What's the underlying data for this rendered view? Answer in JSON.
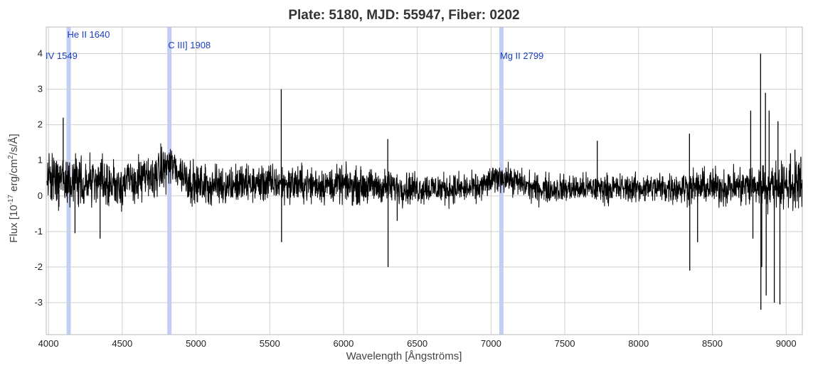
{
  "chart_data": {
    "type": "line",
    "title": "Plate: 5180, MJD: 55947, Fiber: 0202",
    "xlabel": "Wavelength [Ångströms]",
    "ylabel": {
      "prefix": "Flux [10",
      "exp1": "-17",
      "mid": " erg/cm",
      "exp2": "2",
      "suffix": "/s/Å]"
    },
    "xlim": [
      3985,
      9110
    ],
    "ylim": [
      -3.9,
      4.75
    ],
    "x_ticks": [
      4000,
      4500,
      5000,
      5500,
      6000,
      6500,
      7000,
      7500,
      8000,
      8500,
      9000
    ],
    "y_ticks": [
      -3,
      -2,
      -1,
      0,
      1,
      2,
      3,
      4
    ],
    "grid": true,
    "line_color": "#000000",
    "band_color": "#c4cdf4",
    "emission_lines": [
      {
        "label": "IV 1549",
        "wavelength": 3985
      },
      {
        "label": "He II 1640",
        "wavelength": 4137
      },
      {
        "label": "C III] 1908",
        "wavelength": 4820
      },
      {
        "label": "Mg II 2799",
        "wavelength": 7070
      }
    ],
    "continuum": [
      {
        "x": 3990,
        "y": 0.45
      },
      {
        "x": 4200,
        "y": 0.4
      },
      {
        "x": 4500,
        "y": 0.35
      },
      {
        "x": 4700,
        "y": 0.5
      },
      {
        "x": 4820,
        "y": 0.9
      },
      {
        "x": 5000,
        "y": 0.3
      },
      {
        "x": 5500,
        "y": 0.35
      },
      {
        "x": 6000,
        "y": 0.3
      },
      {
        "x": 6500,
        "y": 0.22
      },
      {
        "x": 6900,
        "y": 0.2
      },
      {
        "x": 7070,
        "y": 0.55
      },
      {
        "x": 7300,
        "y": 0.2
      },
      {
        "x": 8000,
        "y": 0.22
      },
      {
        "x": 8500,
        "y": 0.25
      },
      {
        "x": 9110,
        "y": 0.3
      }
    ],
    "noise_amplitude": [
      {
        "x": 3990,
        "y": 0.55
      },
      {
        "x": 4500,
        "y": 0.45
      },
      {
        "x": 5000,
        "y": 0.4
      },
      {
        "x": 6000,
        "y": 0.35
      },
      {
        "x": 7000,
        "y": 0.28
      },
      {
        "x": 8000,
        "y": 0.28
      },
      {
        "x": 8500,
        "y": 0.35
      },
      {
        "x": 9110,
        "y": 0.5
      }
    ],
    "spikes": [
      {
        "x": 4100,
        "y": 2.2
      },
      {
        "x": 4180,
        "y": -1.05
      },
      {
        "x": 4350,
        "y": -1.2
      },
      {
        "x": 5578,
        "y": 3.0
      },
      {
        "x": 5580,
        "y": -1.3
      },
      {
        "x": 6300,
        "y": 1.6
      },
      {
        "x": 6302,
        "y": -2.0
      },
      {
        "x": 6364,
        "y": -0.7
      },
      {
        "x": 7720,
        "y": 1.55
      },
      {
        "x": 8345,
        "y": 1.75
      },
      {
        "x": 8347,
        "y": -2.1
      },
      {
        "x": 8400,
        "y": -1.3
      },
      {
        "x": 8760,
        "y": 2.4
      },
      {
        "x": 8775,
        "y": -1.2
      },
      {
        "x": 8827,
        "y": 4.0
      },
      {
        "x": 8829,
        "y": -3.2
      },
      {
        "x": 8835,
        "y": -2.0
      },
      {
        "x": 8860,
        "y": 2.9
      },
      {
        "x": 8865,
        "y": -2.8
      },
      {
        "x": 8885,
        "y": 2.4
      },
      {
        "x": 8920,
        "y": -3.0
      },
      {
        "x": 8945,
        "y": 2.1
      },
      {
        "x": 8958,
        "y": -3.05
      },
      {
        "x": 9030,
        "y": 1.2
      },
      {
        "x": 9060,
        "y": 1.3
      },
      {
        "x": 9100,
        "y": 1.1
      }
    ]
  }
}
